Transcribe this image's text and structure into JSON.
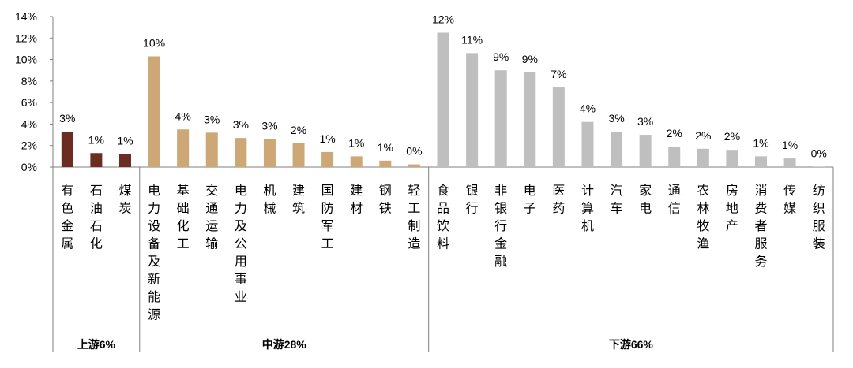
{
  "chart_data": {
    "type": "bar",
    "y_axis": {
      "min": 0,
      "max": 14,
      "step": 2,
      "tick_labels": [
        "0%",
        "2%",
        "4%",
        "6%",
        "8%",
        "10%",
        "12%",
        "14%"
      ]
    },
    "grid": false,
    "legend": "none",
    "categories": [
      "有色金属",
      "石油石化",
      "煤炭",
      "电力设备及新能源",
      "基础化工",
      "交通运输",
      "电力及公用事业",
      "机械",
      "建筑",
      "国防军工",
      "建材",
      "钢铁",
      "轻工制造",
      "食品饮料",
      "银行",
      "非银行金融",
      "电子",
      "医药",
      "计算机",
      "汽车",
      "家电",
      "通信",
      "农林牧渔",
      "房地产",
      "消费者服务",
      "传媒",
      "纺织服装"
    ],
    "values": [
      3.3,
      1.3,
      1.2,
      10.3,
      3.5,
      3.2,
      2.7,
      2.6,
      2.2,
      1.4,
      1.0,
      0.6,
      0.25,
      12.5,
      10.6,
      9.0,
      8.8,
      7.4,
      4.2,
      3.3,
      3.0,
      1.9,
      1.7,
      1.6,
      1.0,
      0.8,
      0.05
    ],
    "data_labels": [
      "3%",
      "1%",
      "1%",
      "10%",
      "4%",
      "3%",
      "3%",
      "3%",
      "2%",
      "1%",
      "1%",
      "1%",
      "0%",
      "12%",
      "11%",
      "9%",
      "9%",
      "7%",
      "4%",
      "3%",
      "3%",
      "2%",
      "2%",
      "2%",
      "1%",
      "1%",
      "0%"
    ],
    "groups": [
      {
        "label": "上游6%",
        "start": 0,
        "end": 2,
        "color": "#6b2d21"
      },
      {
        "label": "中游28%",
        "start": 3,
        "end": 12,
        "color": "#cda876"
      },
      {
        "label": "下游66%",
        "start": 13,
        "end": 26,
        "color": "#bfbfbf"
      }
    ]
  }
}
